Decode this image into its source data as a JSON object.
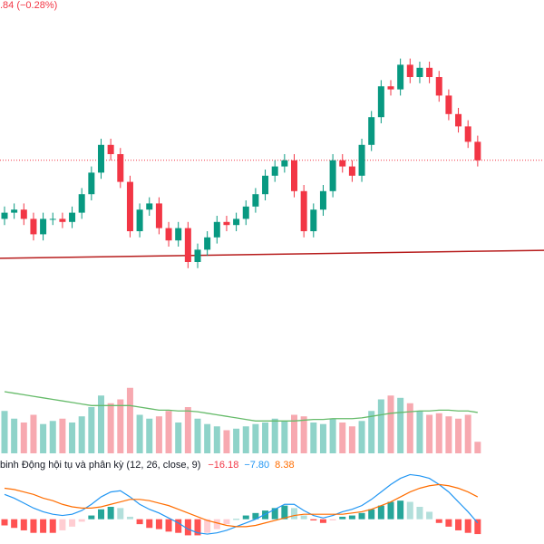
{
  "chart_data": [
    {
      "type": "candlestick",
      "header": ".84 (−0.28%)",
      "up_color": "#089981",
      "down_color": "#f23645",
      "ylim": [
        0,
        100
      ],
      "open": [
        29,
        31,
        32,
        29,
        24,
        29,
        29,
        28,
        31,
        37,
        44,
        53,
        50,
        41,
        25,
        32,
        34,
        26,
        22,
        26,
        15,
        19,
        23,
        28,
        27,
        29,
        33,
        37,
        43,
        46,
        48,
        38,
        25,
        32,
        38,
        48,
        46,
        43,
        53,
        62,
        72,
        71,
        79,
        75,
        78,
        75,
        69,
        63,
        59,
        54
      ],
      "high": [
        33,
        34,
        34,
        31,
        31,
        31,
        31,
        33,
        39,
        46,
        55,
        55,
        52,
        43,
        34,
        36,
        36,
        28,
        28,
        28,
        21,
        25,
        30,
        30,
        31,
        35,
        39,
        45,
        48,
        50,
        50,
        40,
        34,
        40,
        50,
        50,
        48,
        55,
        64,
        74,
        74,
        81,
        81,
        80,
        80,
        77,
        71,
        65,
        61,
        56
      ],
      "low": [
        27,
        29,
        27,
        22,
        22,
        27,
        26,
        26,
        29,
        35,
        42,
        48,
        39,
        23,
        23,
        30,
        24,
        20,
        20,
        13,
        13,
        17,
        21,
        25,
        25,
        27,
        31,
        35,
        41,
        44,
        36,
        23,
        23,
        30,
        36,
        44,
        41,
        41,
        51,
        60,
        69,
        69,
        73,
        73,
        73,
        67,
        61,
        57,
        52,
        46
      ],
      "close": [
        31,
        32,
        29,
        24,
        29,
        29,
        28,
        31,
        37,
        44,
        53,
        50,
        41,
        25,
        32,
        34,
        26,
        22,
        26,
        15,
        19,
        23,
        28,
        27,
        29,
        33,
        37,
        43,
        46,
        48,
        38,
        25,
        32,
        38,
        48,
        46,
        43,
        53,
        62,
        72,
        71,
        79,
        75,
        78,
        75,
        69,
        63,
        59,
        54,
        48
      ],
      "trendline": {
        "color": "#b71c1c",
        "values": [
          16.2,
          18.8
        ]
      }
    },
    {
      "type": "bar",
      "ylim": [
        0,
        100
      ],
      "up_color": "#8fd3c9",
      "down_color": "#f7a9b0",
      "values": [
        55,
        45,
        40,
        50,
        38,
        42,
        45,
        40,
        48,
        60,
        75,
        65,
        70,
        85,
        50,
        45,
        48,
        55,
        40,
        60,
        45,
        38,
        35,
        30,
        32,
        35,
        38,
        40,
        45,
        42,
        50,
        48,
        40,
        38,
        45,
        40,
        35,
        42,
        55,
        70,
        75,
        72,
        65,
        55,
        50,
        52,
        48,
        45,
        50,
        15
      ],
      "series": [
        {
          "color": "#66bb6a",
          "values": [
            80,
            78,
            76,
            74,
            72,
            70,
            68,
            66,
            64,
            62,
            62,
            62,
            62,
            62,
            60,
            58,
            56,
            56,
            55,
            55,
            54,
            52,
            50,
            48,
            46,
            44,
            42,
            42,
            42,
            42,
            42,
            43,
            44,
            44,
            45,
            45,
            45,
            46,
            48,
            50,
            52,
            53,
            54,
            55,
            55,
            56,
            56,
            55,
            55,
            53
          ]
        }
      ]
    },
    {
      "type": "macd",
      "title": "binh Động hội tụ và phân kỳ (12, 26, close, 9)",
      "legend_values": [
        {
          "value": -16.18,
          "label": "−16.18",
          "color": "#f23645"
        },
        {
          "value": -7.8,
          "label": "−7.80",
          "color": "#2196f3"
        },
        {
          "value": 8.38,
          "label": "8.38",
          "color": "#ff6d00"
        }
      ],
      "ylim": [
        -20,
        40
      ],
      "histogram": [
        -5,
        -7,
        -9,
        -11,
        -11,
        -11,
        -9,
        -6,
        -2,
        3,
        8,
        10,
        9,
        2,
        -4,
        -7,
        -8,
        -10,
        -11,
        -13,
        -13,
        -11,
        -8,
        -4,
        0,
        3,
        5,
        7,
        9,
        11,
        9,
        3,
        -1,
        -3,
        -1,
        2,
        3,
        5,
        8,
        11,
        14,
        15,
        14,
        10,
        6,
        -3,
        -6,
        -9,
        -11,
        -12
      ],
      "histogram_colors": [
        "#26a69a",
        "#b2dfdb",
        "#ff5252",
        "#ffcdd2"
      ],
      "series": [
        {
          "color": "#2196f3",
          "values": [
            20,
            17,
            13,
            9,
            6,
            4,
            3,
            4,
            7,
            12,
            18,
            22,
            23,
            18,
            12,
            8,
            5,
            1,
            -3,
            -8,
            -11,
            -12,
            -11,
            -9,
            -6,
            -3,
            0,
            4,
            8,
            12,
            12,
            7,
            3,
            1,
            3,
            6,
            8,
            11,
            16,
            22,
            28,
            33,
            36,
            35,
            33,
            28,
            22,
            14,
            6,
            -3
          ]
        },
        {
          "color": "#ff6d00",
          "values": [
            25,
            24,
            22,
            20,
            17,
            15,
            12,
            10,
            9,
            9,
            10,
            12,
            14,
            16,
            16,
            15,
            13,
            11,
            8,
            5,
            2,
            -1,
            -3,
            -5,
            -6,
            -6,
            -5,
            -3,
            -1,
            1,
            3,
            4,
            4,
            4,
            4,
            4,
            5,
            6,
            8,
            11,
            14,
            18,
            22,
            25,
            27,
            28,
            27,
            25,
            22,
            18
          ]
        }
      ]
    }
  ]
}
